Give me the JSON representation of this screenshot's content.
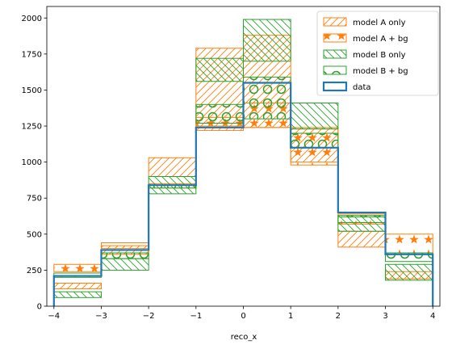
{
  "chart_data": {
    "type": "histogram",
    "xlabel": "reco_x",
    "ylabel": "",
    "title": "",
    "xlim": [
      -4.15,
      4.15
    ],
    "ylim": [
      0,
      2080
    ],
    "xticks": [
      -4,
      -3,
      -2,
      -1,
      0,
      1,
      2,
      3,
      4
    ],
    "yticks": [
      0,
      250,
      500,
      750,
      1000,
      1250,
      1500,
      1750,
      2000
    ],
    "bin_edges": [
      -4,
      -3,
      -2,
      -1,
      0,
      1,
      2,
      3,
      4
    ],
    "legend_position": "top-right",
    "series": [
      {
        "name": "model A only",
        "kind": "band",
        "color": "#ff7f0e",
        "hatch": "diagonal",
        "low": [
          120,
          360,
          900,
          1220,
          1240,
          1000,
          410,
          190
        ],
        "high": [
          160,
          420,
          1030,
          1790,
          1880,
          1240,
          520,
          240
        ]
      },
      {
        "name": "model A + bg",
        "kind": "band",
        "color": "#ff7f0e",
        "hatch": "stars",
        "low": [
          240,
          400,
          820,
          1250,
          1240,
          980,
          570,
          370
        ],
        "high": [
          290,
          440,
          850,
          1310,
          1410,
          1230,
          640,
          500
        ]
      },
      {
        "name": "model B only",
        "kind": "band",
        "color": "#2ca02c",
        "hatch": "backdiagonal",
        "low": [
          60,
          250,
          780,
          1560,
          1700,
          1230,
          520,
          180
        ],
        "high": [
          100,
          330,
          900,
          1720,
          1990,
          1410,
          620,
          290
        ]
      },
      {
        "name": "model B + bg",
        "kind": "band",
        "color": "#2ca02c",
        "hatch": "circles",
        "low": [
          200,
          330,
          820,
          1270,
          1300,
          1100,
          580,
          310
        ],
        "high": [
          230,
          370,
          840,
          1400,
          1590,
          1200,
          630,
          370
        ]
      },
      {
        "name": "data",
        "kind": "step",
        "color": "#1f77b4",
        "values": [
          210,
          390,
          840,
          1240,
          1550,
          1100,
          650,
          360
        ]
      }
    ]
  }
}
